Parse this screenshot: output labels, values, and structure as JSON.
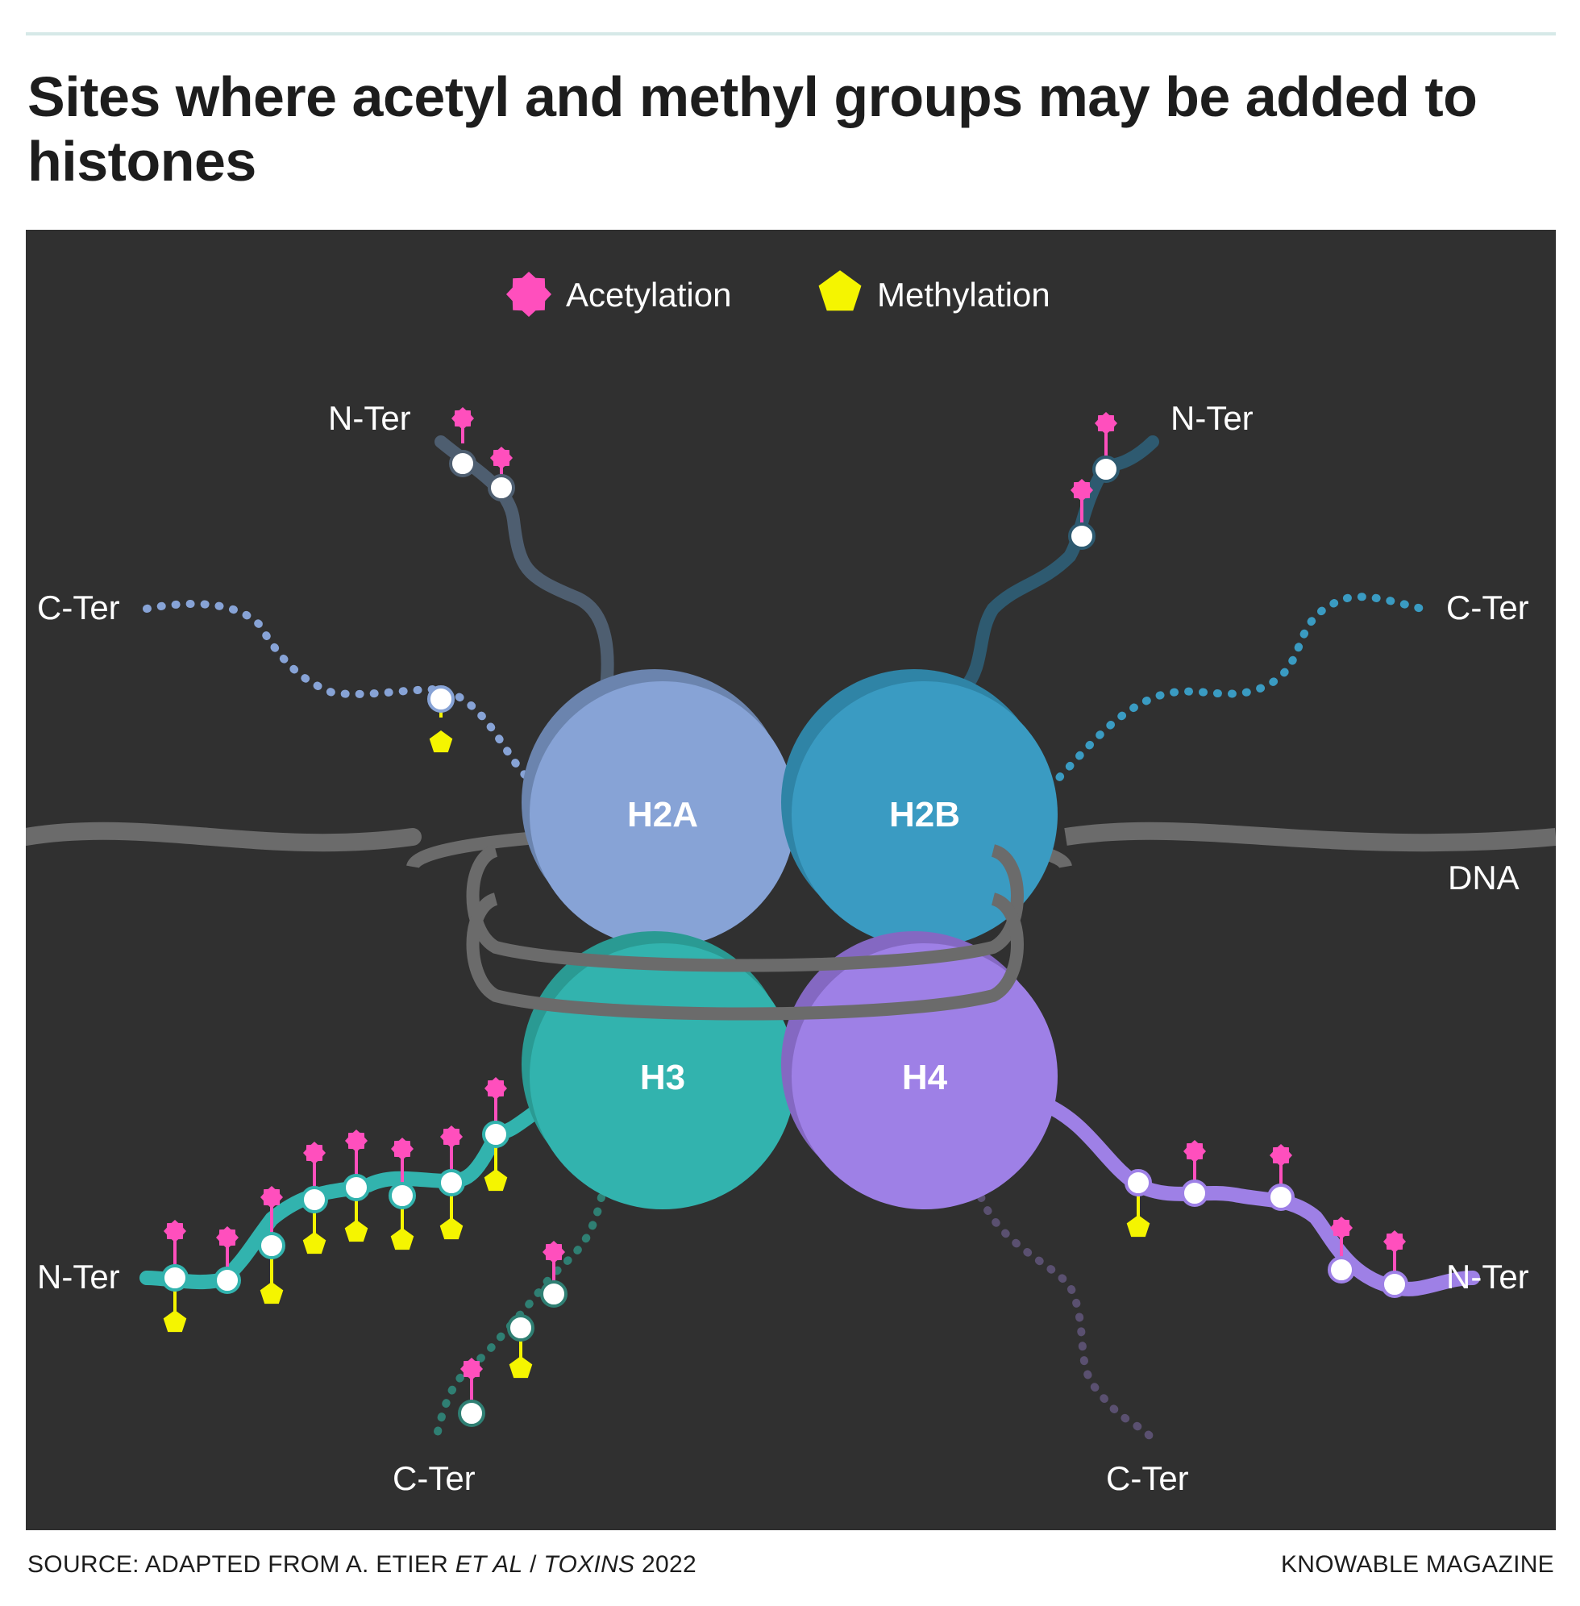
{
  "title": "Sites where acetyl and methyl groups may be added to histones",
  "legend": {
    "acetylation_label": "Acetylation",
    "methylation_label": "Methylation"
  },
  "histones": {
    "h2a": "H2A",
    "h2b": "H2B",
    "h3": "H3",
    "h4": "H4"
  },
  "labels": {
    "h2a_n_ter": "N-Ter",
    "h2a_c_ter": "C-Ter",
    "h2b_n_ter": "N-Ter",
    "h2b_c_ter": "C-Ter",
    "h3_n_ter": "N-Ter",
    "h3_c_ter": "C-Ter",
    "h4_n_ter": "N-Ter",
    "h4_c_ter": "C-Ter",
    "dna": "DNA"
  },
  "footer": {
    "source_prefix": "SOURCE: ADAPTED FROM A. ETIER ",
    "source_etal": "ET AL",
    "source_sep": " / ",
    "source_journal": "TOXINS",
    "source_year": " 2022",
    "credit": "KNOWABLE MAGAZINE"
  },
  "colors": {
    "h2a": "#87a3d6",
    "h2b": "#3a9bc2",
    "h3": "#32b3ae",
    "h4": "#9e80e6",
    "acetylation": "#ff4fbd",
    "methylation": "#f5f500",
    "dna": "#6b6b6b",
    "panel": "#303030"
  }
}
